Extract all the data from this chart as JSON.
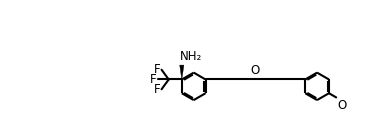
{
  "bg_color": "#ffffff",
  "line_color": "#000000",
  "line_width": 1.5,
  "text_color": "#000000",
  "font_size": 8.5,
  "fig_width": 3.91,
  "fig_height": 1.37,
  "dpi": 100,
  "NH2_label": "NH₂",
  "O_bridge_label": "O",
  "OMe_label": "O"
}
